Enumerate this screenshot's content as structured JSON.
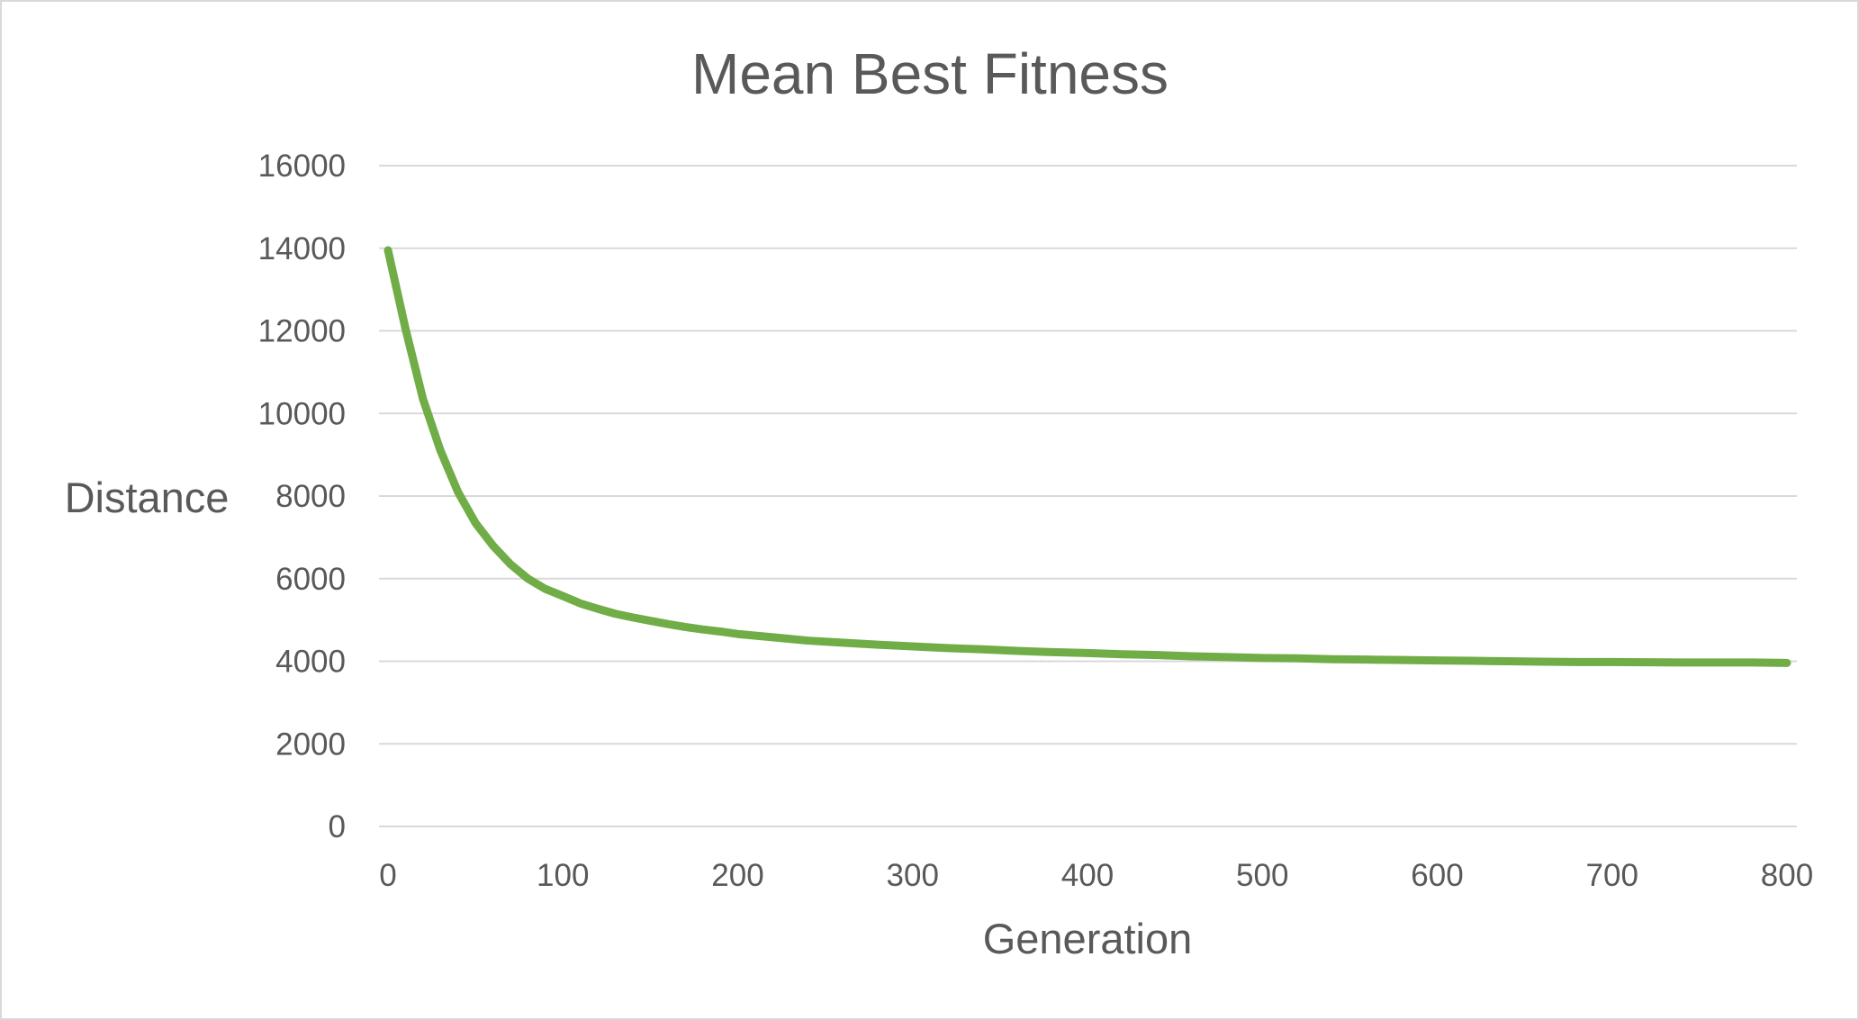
{
  "chart_data": {
    "type": "line",
    "title": "Mean Best Fitness",
    "xlabel": "Generation",
    "ylabel": "Distance",
    "xlim": [
      0,
      800
    ],
    "ylim": [
      0,
      16000
    ],
    "x_ticks": [
      "0",
      "100",
      "200",
      "300",
      "400",
      "500",
      "600",
      "700",
      "800"
    ],
    "y_ticks": [
      "0",
      "2000",
      "4000",
      "6000",
      "8000",
      "10000",
      "12000",
      "14000",
      "16000"
    ],
    "grid": true,
    "legend": "none",
    "colors": {
      "series": "#70ad47",
      "grid": "#d9d9d9",
      "text": "#595959"
    },
    "series": [
      {
        "x": [
          0,
          10,
          20,
          30,
          40,
          50,
          60,
          70,
          80,
          90,
          100,
          110,
          120,
          130,
          140,
          150,
          160,
          170,
          180,
          190,
          200,
          220,
          240,
          260,
          280,
          300,
          320,
          340,
          360,
          380,
          400,
          420,
          440,
          460,
          480,
          500,
          520,
          540,
          560,
          580,
          600,
          620,
          640,
          660,
          680,
          700,
          720,
          740,
          760,
          780,
          800
        ],
        "values": [
          13950,
          12050,
          10350,
          9100,
          8100,
          7350,
          6800,
          6350,
          6000,
          5750,
          5580,
          5400,
          5270,
          5150,
          5060,
          4980,
          4900,
          4830,
          4770,
          4720,
          4660,
          4580,
          4500,
          4450,
          4400,
          4360,
          4320,
          4290,
          4250,
          4220,
          4200,
          4170,
          4150,
          4120,
          4100,
          4080,
          4070,
          4050,
          4040,
          4030,
          4020,
          4010,
          4000,
          3990,
          3980,
          3980,
          3975,
          3970,
          3970,
          3970,
          3960
        ]
      }
    ]
  }
}
